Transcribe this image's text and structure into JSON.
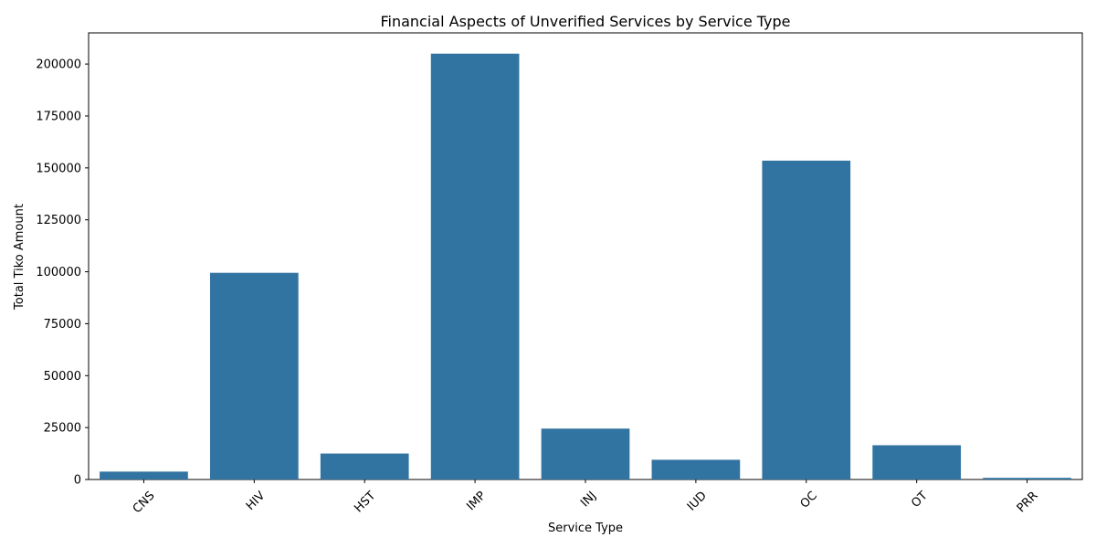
{
  "chart_data": {
    "type": "bar",
    "title": "Financial Aspects of Unverified Services by Service Type",
    "xlabel": "Service Type",
    "ylabel": "Total Tiko Amount",
    "categories": [
      "CNS",
      "HIV",
      "HST",
      "IMP",
      "INJ",
      "IUD",
      "OC",
      "OT",
      "PRR"
    ],
    "values": [
      3800,
      99500,
      12500,
      205000,
      24500,
      9500,
      153500,
      16500,
      800
    ],
    "ylim": [
      0,
      215000
    ],
    "yticks": [
      0,
      25000,
      50000,
      75000,
      100000,
      125000,
      150000,
      175000,
      200000
    ],
    "bar_color": "#3274a1",
    "grid": false,
    "legend": "none"
  }
}
